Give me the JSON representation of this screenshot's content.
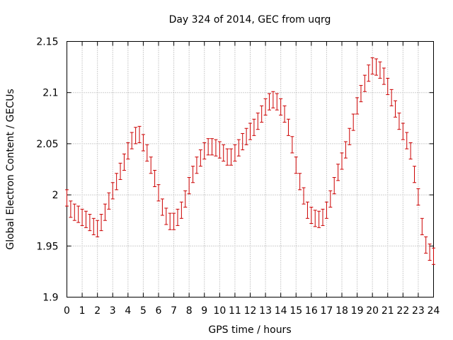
{
  "chart_data": {
    "type": "scatter",
    "title": "Day 324 of 2014, GEC from uqrg",
    "xlabel": "GPS time / hours",
    "ylabel": "Global Electron Content / GECUs",
    "xlim": [
      0,
      24
    ],
    "ylim": [
      1.9,
      2.15
    ],
    "xticks": [
      "0",
      "1",
      "2",
      "3",
      "4",
      "5",
      "6",
      "7",
      "8",
      "9",
      "10",
      "11",
      "12",
      "13",
      "14",
      "15",
      "16",
      "17",
      "18",
      "19",
      "20",
      "21",
      "22",
      "23",
      "24"
    ],
    "yticks": [
      "1.9",
      "1.95",
      "2",
      "2.05",
      "2.1",
      "2.15"
    ],
    "grid": true,
    "series_color": "#cc0000",
    "error_bar": 0.008,
    "series": [
      {
        "x": [
          0.0,
          0.25,
          0.5,
          0.75,
          1.0,
          1.25,
          1.5,
          1.75,
          2.0,
          2.25,
          2.5,
          2.75,
          3.0,
          3.25,
          3.5,
          3.75,
          4.0,
          4.25,
          4.5,
          4.75,
          5.0,
          5.25,
          5.5,
          5.75,
          6.0,
          6.25,
          6.5,
          6.75,
          7.0,
          7.25,
          7.5,
          7.75,
          8.0,
          8.25,
          8.5,
          8.75,
          9.0,
          9.25,
          9.5,
          9.75,
          10.0,
          10.25,
          10.5,
          10.75,
          11.0,
          11.25,
          11.5,
          11.75,
          12.0,
          12.25,
          12.5,
          12.75,
          13.0,
          13.25,
          13.5,
          13.75,
          14.0,
          14.25,
          14.5,
          14.75,
          15.0,
          15.25,
          15.5,
          15.75,
          16.0,
          16.25,
          16.5,
          16.75,
          17.0,
          17.25,
          17.5,
          17.75,
          18.0,
          18.25,
          18.5,
          18.75,
          19.0,
          19.25,
          19.5,
          19.75,
          20.0,
          20.25,
          20.5,
          20.75,
          21.0,
          21.25,
          21.5,
          21.75,
          22.0,
          22.25,
          22.5,
          22.75,
          23.0,
          23.25,
          23.5,
          23.75,
          24.0
        ],
        "y": [
          1.997,
          1.986,
          1.983,
          1.981,
          1.978,
          1.976,
          1.973,
          1.969,
          1.967,
          1.973,
          1.983,
          1.994,
          2.004,
          2.013,
          2.023,
          2.032,
          2.043,
          2.053,
          2.058,
          2.059,
          2.051,
          2.041,
          2.029,
          2.016,
          2.002,
          1.988,
          1.979,
          1.974,
          1.974,
          1.978,
          1.985,
          1.996,
          2.009,
          2.02,
          2.029,
          2.036,
          2.043,
          2.047,
          2.047,
          2.046,
          2.044,
          2.041,
          2.037,
          2.037,
          2.041,
          2.046,
          2.052,
          2.057,
          2.062,
          2.066,
          2.072,
          2.079,
          2.086,
          2.091,
          2.093,
          2.091,
          2.086,
          2.079,
          2.066,
          2.049,
          2.029,
          2.013,
          1.999,
          1.985,
          1.98,
          1.977,
          1.976,
          1.978,
          1.985,
          1.996,
          2.009,
          2.022,
          2.033,
          2.044,
          2.057,
          2.071,
          2.087,
          2.099,
          2.109,
          2.119,
          2.126,
          2.125,
          2.122,
          2.116,
          2.106,
          2.095,
          2.084,
          2.072,
          2.062,
          2.053,
          2.043,
          2.02,
          1.998,
          1.969,
          1.951,
          1.944,
          1.94
        ]
      }
    ]
  }
}
